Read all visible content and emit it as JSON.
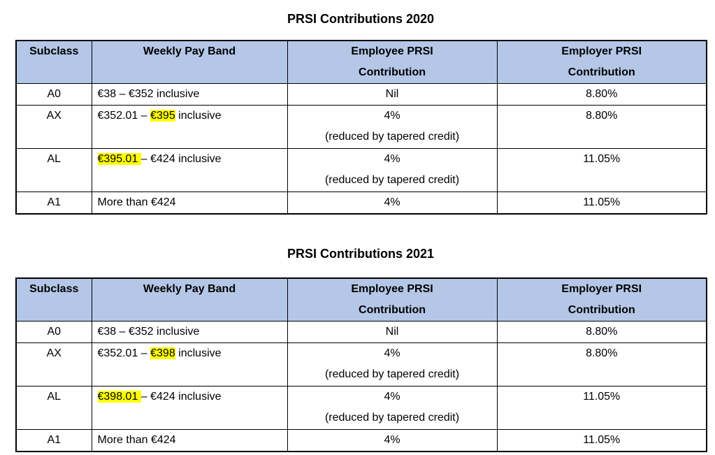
{
  "colors": {
    "page_bg": "#FFFFFF",
    "text": "#000000",
    "border": "#000000",
    "header_bg": "#B4C7E7",
    "highlight": "#FFFF00"
  },
  "tables": [
    {
      "title": "PRSI Contributions 2020",
      "headers": [
        "Subclass",
        "Weekly Pay Band",
        "Employee PRSI\nContribution",
        "Employer PRSI\nContribution"
      ],
      "rows": [
        {
          "subclass": "A0",
          "pay_band": [
            {
              "text": "€38 – €352 inclusive"
            }
          ],
          "employee_contribution": "Nil",
          "employer_contribution": "8.80%"
        },
        {
          "subclass": "AX",
          "pay_band": [
            {
              "text": "€352.01 – "
            },
            {
              "text": "€395",
              "highlight": true
            },
            {
              "text": " inclusive"
            }
          ],
          "employee_contribution": "4%\n(reduced by tapered credit)",
          "employer_contribution": "8.80%"
        },
        {
          "subclass": "AL",
          "pay_band": [
            {
              "text": "€395.01 ",
              "highlight": true
            },
            {
              "text": "– €424 inclusive"
            }
          ],
          "employee_contribution": "4%\n(reduced by tapered credit)",
          "employer_contribution": "11.05%"
        },
        {
          "subclass": "A1",
          "pay_band": [
            {
              "text": "More than €424"
            }
          ],
          "employee_contribution": "4%",
          "employer_contribution": "11.05%"
        }
      ]
    },
    {
      "title": "PRSI Contributions 2021",
      "headers": [
        "Subclass",
        "Weekly Pay Band",
        "Employee PRSI\nContribution",
        "Employer PRSI\nContribution"
      ],
      "rows": [
        {
          "subclass": "A0",
          "pay_band": [
            {
              "text": "€38 – €352 inclusive"
            }
          ],
          "employee_contribution": "Nil",
          "employer_contribution": "8.80%"
        },
        {
          "subclass": "AX",
          "pay_band": [
            {
              "text": "€352.01 – "
            },
            {
              "text": "€398",
              "highlight": true
            },
            {
              "text": " inclusive"
            }
          ],
          "employee_contribution": "4%\n(reduced by tapered credit)",
          "employer_contribution": "8.80%"
        },
        {
          "subclass": "AL",
          "pay_band": [
            {
              "text": "€398.01 ",
              "highlight": true
            },
            {
              "text": "– €424 inclusive"
            }
          ],
          "employee_contribution": "4%\n(reduced by tapered credit)",
          "employer_contribution": "11.05%"
        },
        {
          "subclass": "A1",
          "pay_band": [
            {
              "text": "More than €424"
            }
          ],
          "employee_contribution": "4%",
          "employer_contribution": "11.05%"
        }
      ]
    }
  ]
}
